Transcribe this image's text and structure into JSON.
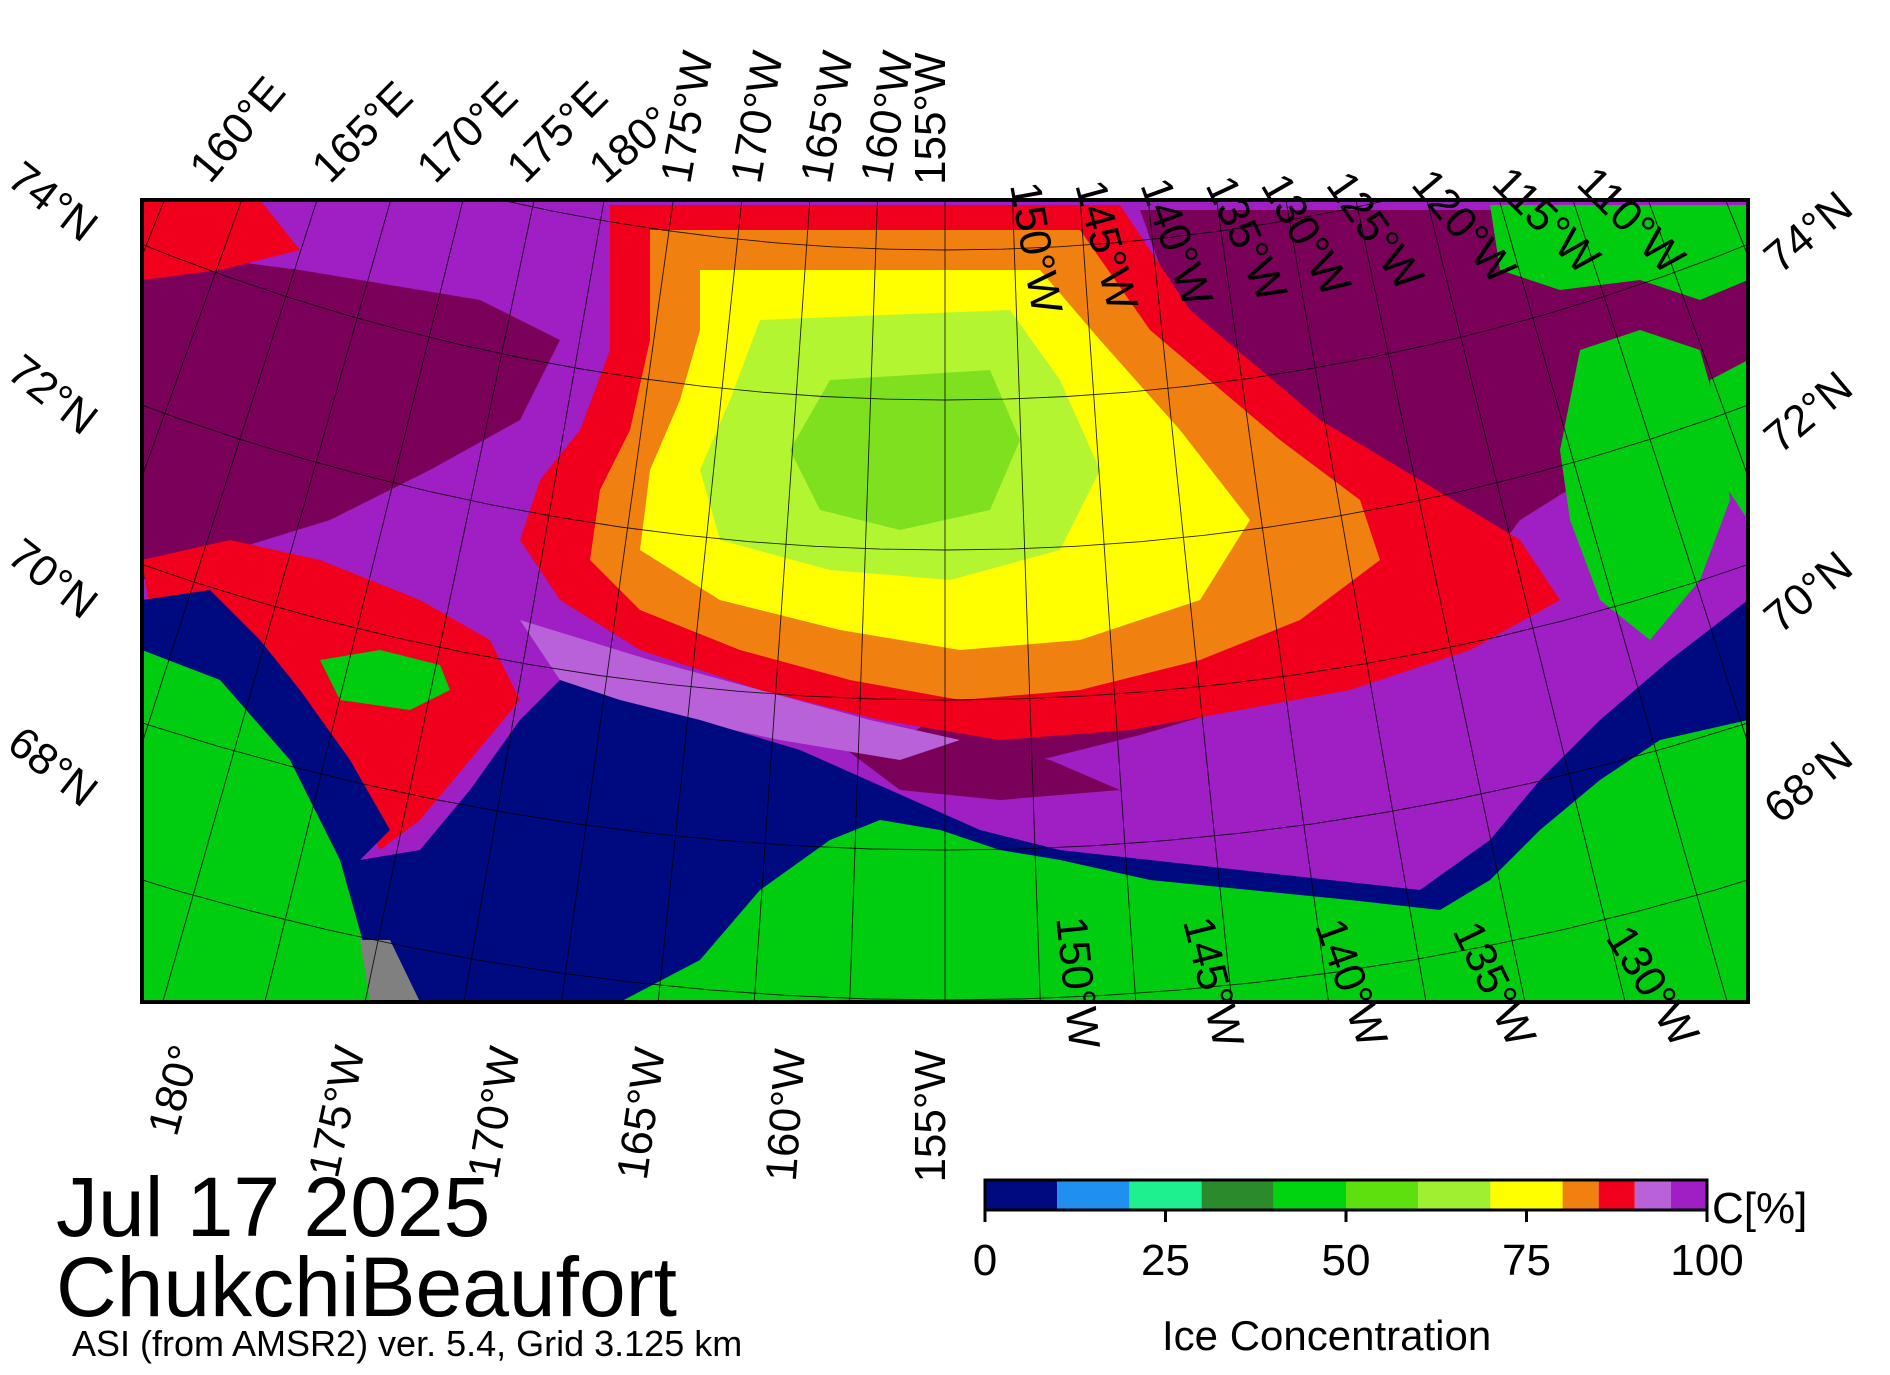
{
  "map": {
    "date": "Jul 17 2025",
    "region": "ChukchiBeaufort",
    "product": "ASI (from AMSR2) ver. 5.4,  Grid 3.125 km",
    "top_lon_labels": [
      "160°E",
      "165°E",
      "170°E",
      "175°E",
      "180°",
      "175°W",
      "170°W",
      "165°W",
      "160°W",
      "155°W",
      "150°W",
      "145°W",
      "140°W",
      "135°W",
      "130°W",
      "125°W",
      "120°W",
      "115°W",
      "110°W"
    ],
    "bottom_lon_labels": [
      "180°",
      "175°W",
      "170°W",
      "165°W",
      "160°W",
      "155°W",
      "150°W",
      "145°W",
      "140°W",
      "135°W",
      "130°W"
    ],
    "left_lat_labels": [
      "74°N",
      "72°N",
      "70°N",
      "68°N"
    ],
    "right_lat_labels": [
      "74°N",
      "72°N",
      "70°N",
      "68°N"
    ],
    "colors": {
      "land": "#00cc10",
      "open_water": "#000a80",
      "no_data": "#808080",
      "ice_high": "#7a0059",
      "ice_purple": "#9f1fc4",
      "ice_lilac": "#b861d8",
      "ice_red": "#f0001d",
      "ice_orange": "#f08010",
      "ice_yellow": "#ffff00",
      "ice_lime": "#b4f532",
      "ice_green": "#7fe01f"
    }
  },
  "colorbar": {
    "title": "Ice Concentration",
    "unit": "C[%]",
    "tick_labels": [
      "0",
      "25",
      "50",
      "75",
      "100"
    ],
    "colors": [
      "#000a80",
      "#1f8ff0",
      "#1ff08f",
      "#2b8a2b",
      "#00d410",
      "#5ee00f",
      "#9ff030",
      "#ffff00",
      "#f08010",
      "#f0001d",
      "#b861d8",
      "#9f1fc4"
    ],
    "bounds": [
      0,
      10,
      20,
      30,
      40,
      50,
      60,
      70,
      80,
      85,
      90,
      95,
      100
    ]
  }
}
